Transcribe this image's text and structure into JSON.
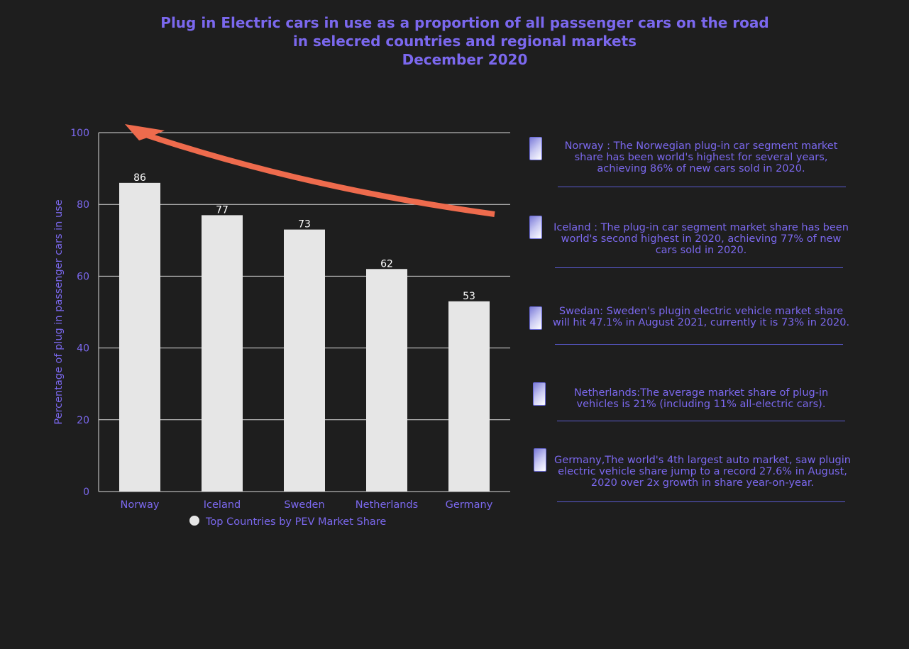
{
  "title_lines": [
    "Plug in Electric cars in use as a proportion of all passenger cars on the road",
    "in selecred countries and regional markets",
    "December 2020"
  ],
  "colors": {
    "background": "#1e1e1e",
    "text": "#7b68ee",
    "bar": "#e6e6e6",
    "grid": "#d9d9d9",
    "arrow": "#ee6b4d"
  },
  "chart_data": {
    "type": "bar",
    "categories": [
      "Norway",
      "Iceland",
      "Sweden",
      "Netherlands",
      "Germany"
    ],
    "series": [
      {
        "name": "Top Countries by PEV Market Share",
        "values": [
          86,
          77,
          73,
          62,
          53
        ]
      }
    ],
    "ylabel": "Percentage of plug in passenger cars in use",
    "xlabel": "",
    "ylim": [
      0,
      100
    ],
    "yticks": [
      0,
      20,
      40,
      60,
      80,
      100
    ],
    "grid": true,
    "legend": "bottom"
  },
  "notes": [
    {
      "icon": "document-icon",
      "text": "Norway : The Norwegian plug-in car segment market share has been world's highest for several years, achieving 86% of new cars sold in 2020."
    },
    {
      "icon": "document-icon",
      "text": "Iceland : The plug-in car segment market share has been world's second highest in 2020, achieving 77% of new cars sold in 2020."
    },
    {
      "icon": "document-icon",
      "text": "Swedan: Sweden's plugin electric vehicle market share will hit 47.1% in August 2021, currently it is 73% in 2020."
    },
    {
      "icon": "document-icon",
      "text": "Netherlands:The average market share of plug-in vehicles is 21% (including 11% all-electric cars)."
    },
    {
      "icon": "document-icon",
      "text": "Germany,The world's 4th largest auto market, saw plugin electric vehicle share jump to a record 27.6% in August, 2020 over 2x growth in share year-on-year."
    }
  ]
}
